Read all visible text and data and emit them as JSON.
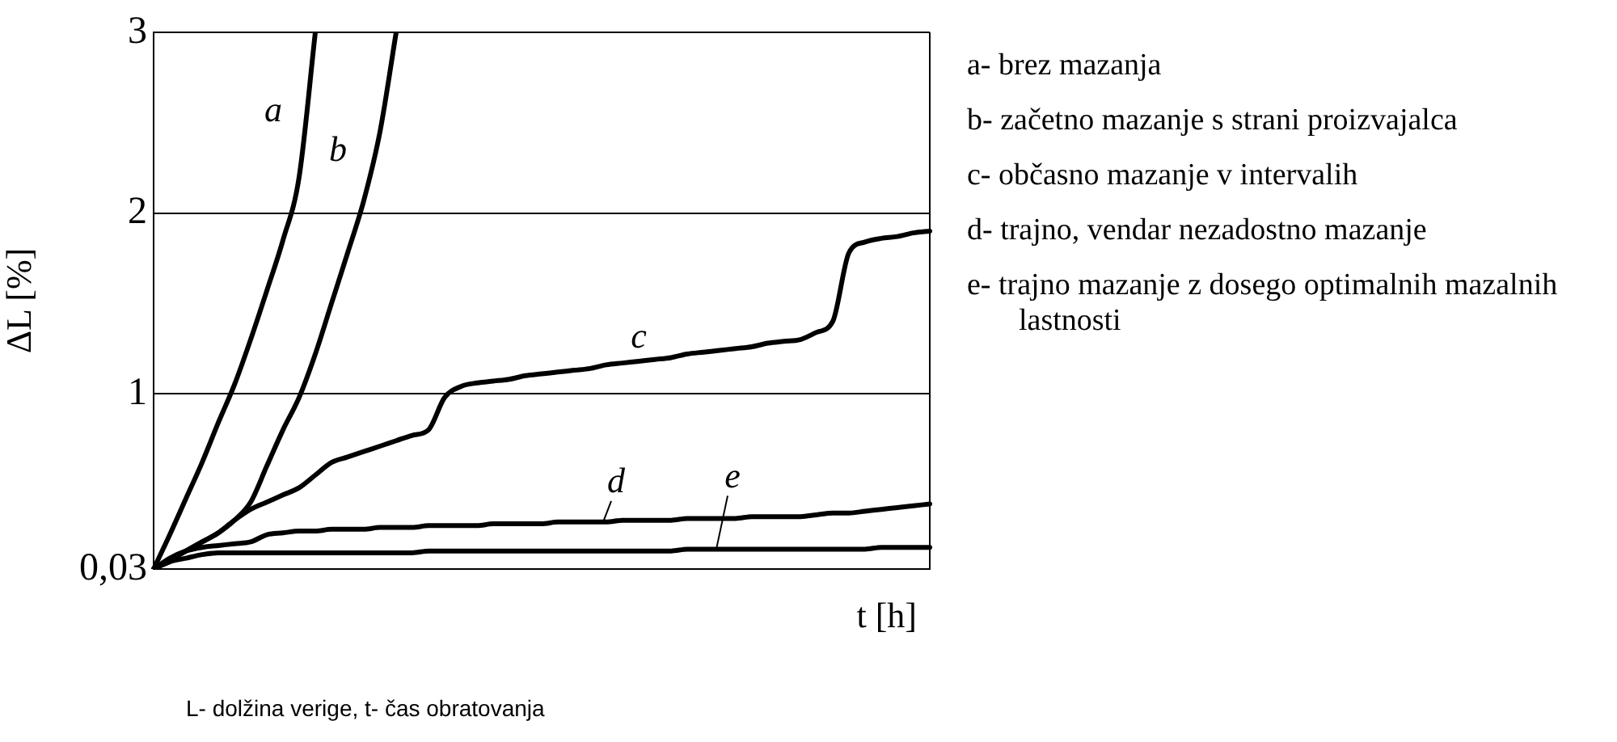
{
  "chart_data": {
    "type": "line",
    "ylabel": "ΔL [%]",
    "xlabel": "t [h]",
    "categories": [
      null,
      null,
      null,
      null,
      null,
      null,
      null,
      null,
      null,
      null,
      null,
      null,
      null,
      null,
      null,
      null,
      null,
      null,
      null,
      null,
      null,
      null,
      null,
      null,
      null,
      null,
      null,
      null,
      null,
      null,
      null,
      null,
      null,
      null,
      null,
      null,
      null,
      null,
      null,
      null,
      null,
      null,
      null,
      null,
      null,
      null,
      null,
      null,
      null
    ],
    "ylim": [
      0.03,
      3
    ],
    "yticks": [
      {
        "value": 0.03,
        "label": "0,03"
      },
      1,
      2,
      3
    ],
    "grid": "y",
    "legend": false,
    "marker": "none",
    "line_style": "solid",
    "series": [
      {
        "name": "a",
        "color": "#000000",
        "values": [
          0.03,
          0.22,
          0.42,
          0.62,
          0.84,
          1.05,
          1.3,
          1.57,
          1.85,
          2.2,
          3.0,
          null,
          null,
          null,
          null,
          null,
          null,
          null,
          null,
          null,
          null,
          null,
          null,
          null,
          null,
          null,
          null,
          null,
          null,
          null,
          null,
          null,
          null,
          null,
          null,
          null,
          null,
          null,
          null,
          null,
          null,
          null,
          null,
          null,
          null,
          null,
          null,
          null,
          null
        ]
      },
      {
        "name": "b",
        "color": "#000000",
        "values": [
          0.03,
          0.08,
          0.13,
          0.18,
          0.23,
          0.3,
          0.4,
          0.6,
          0.8,
          0.98,
          1.22,
          1.5,
          1.78,
          2.07,
          2.45,
          3.0,
          null,
          null,
          null,
          null,
          null,
          null,
          null,
          null,
          null,
          null,
          null,
          null,
          null,
          null,
          null,
          null,
          null,
          null,
          null,
          null,
          null,
          null,
          null,
          null,
          null,
          null,
          null,
          null,
          null,
          null,
          null,
          null,
          null
        ]
      },
      {
        "name": "c",
        "color": "#000000",
        "values": [
          0.03,
          0.08,
          0.13,
          0.18,
          0.23,
          0.3,
          0.36,
          0.4,
          0.44,
          0.48,
          0.55,
          0.62,
          0.65,
          0.68,
          0.71,
          0.74,
          0.77,
          0.8,
          0.98,
          1.04,
          1.06,
          1.07,
          1.08,
          1.1,
          1.11,
          1.12,
          1.13,
          1.14,
          1.16,
          1.17,
          1.18,
          1.19,
          1.2,
          1.22,
          1.23,
          1.24,
          1.25,
          1.26,
          1.28,
          1.29,
          1.3,
          1.34,
          1.4,
          1.78,
          1.84,
          1.86,
          1.87,
          1.89,
          1.9
        ]
      },
      {
        "name": "d",
        "color": "#000000",
        "values": [
          0.03,
          0.09,
          0.13,
          0.15,
          0.16,
          0.17,
          0.18,
          0.22,
          0.23,
          0.24,
          0.24,
          0.25,
          0.25,
          0.25,
          0.26,
          0.26,
          0.26,
          0.27,
          0.27,
          0.27,
          0.27,
          0.28,
          0.28,
          0.28,
          0.28,
          0.29,
          0.29,
          0.29,
          0.29,
          0.3,
          0.3,
          0.3,
          0.3,
          0.31,
          0.31,
          0.31,
          0.31,
          0.32,
          0.32,
          0.32,
          0.32,
          0.33,
          0.34,
          0.34,
          0.35,
          0.36,
          0.37,
          0.38,
          0.39
        ]
      },
      {
        "name": "e",
        "color": "#000000",
        "values": [
          0.03,
          0.07,
          0.09,
          0.11,
          0.12,
          0.12,
          0.12,
          0.12,
          0.12,
          0.12,
          0.12,
          0.12,
          0.12,
          0.12,
          0.12,
          0.12,
          0.12,
          0.13,
          0.13,
          0.13,
          0.13,
          0.13,
          0.13,
          0.13,
          0.13,
          0.13,
          0.13,
          0.13,
          0.13,
          0.13,
          0.13,
          0.13,
          0.13,
          0.14,
          0.14,
          0.14,
          0.14,
          0.14,
          0.14,
          0.14,
          0.14,
          0.14,
          0.14,
          0.14,
          0.14,
          0.15,
          0.15,
          0.15,
          0.15
        ]
      }
    ],
    "annotations": [
      "a- brez mazanja",
      "b- začetno mazanje s strani proizvajalca",
      "c- občasno mazanje v intervalih",
      "d- trajno, vendar nezadostno mazanje",
      "e- trajno mazanje z dosego optimalnih mazalnih lastnosti",
      "L- dolžina verige,  t- čas obratovanja"
    ]
  }
}
